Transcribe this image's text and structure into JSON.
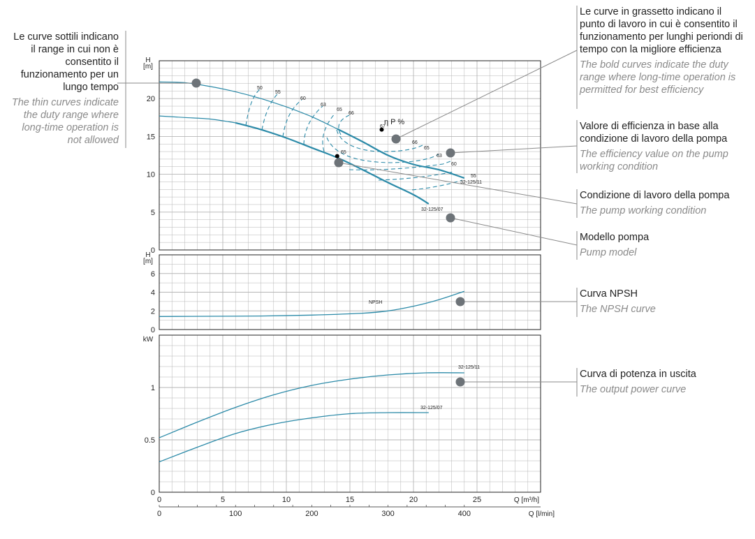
{
  "annotations": {
    "thin_curves": {
      "it": "Le curve sottili indicano il range in cui non è consentito il funzionamento per un lungo tempo",
      "en": "The thin curves indicate the duty range where long-time operation is not allowed"
    },
    "bold_curves": {
      "it": "Le curve in grassetto indicano il punto di lavoro in cui è consentito il funzionamento per lunghi periondi di tempo con la migliore efficienza",
      "en": "The bold curves indicate the duty range where long-time operation is permitted for best efficiency"
    },
    "efficiency": {
      "it": "Valore di efficienza in base alla condizione di lavoro della pompa",
      "en": "The efficiency value on the pump working condition"
    },
    "working_condition": {
      "it": "Condizione di lavoro della pompa",
      "en": "The pump working condition"
    },
    "pump_model": {
      "it": "Modello pompa",
      "en": "Pump model"
    },
    "npsh_curve": {
      "it": "Curva NPSH",
      "en": "The NPSH curve"
    },
    "power_curve": {
      "it": "Curva di potenza in uscita",
      "en": "The output power curve"
    }
  },
  "colors": {
    "curve": "#2b8aa8",
    "marker": "#6d7378",
    "grid": "#b5b5b5",
    "leader": "#8a8a8a",
    "axis": "#222222"
  },
  "chart_data": [
    {
      "type": "line",
      "panel": "head",
      "ylabel": "H [m]",
      "ylim": [
        0,
        25
      ],
      "xlim": [
        0,
        30
      ],
      "yticks": [
        0,
        5,
        10,
        15,
        20
      ],
      "eta_label": "η P %",
      "series": [
        {
          "name": "32-125/11",
          "weight": "thin",
          "x": [
            0,
            2,
            4,
            6,
            8,
            10,
            12,
            14
          ],
          "y": [
            22.2,
            22.1,
            21.6,
            20.9,
            20.0,
            18.9,
            17.6,
            16.0
          ]
        },
        {
          "name": "32-125/11",
          "weight": "bold",
          "x": [
            14,
            16,
            18,
            20,
            22,
            24
          ],
          "y": [
            16.0,
            14.3,
            12.5,
            11.3,
            10.6,
            9.5
          ]
        },
        {
          "name": "32-125/07",
          "weight": "thin",
          "x": [
            0,
            2,
            4,
            6
          ],
          "y": [
            17.7,
            17.5,
            17.3,
            16.8
          ]
        },
        {
          "name": "32-125/07",
          "weight": "bold",
          "x": [
            6,
            8,
            10,
            12,
            14,
            16,
            18,
            20,
            21.2
          ],
          "y": [
            16.8,
            15.9,
            14.8,
            13.5,
            12.2,
            10.6,
            8.9,
            7.3,
            6.1
          ]
        }
      ],
      "efficiency_labels": {
        "upper": [
          "50",
          "55",
          "60",
          "63",
          "65",
          "66",
          "67"
        ],
        "right": [
          "66",
          "65",
          "63",
          "60",
          "55"
        ],
        "lower": [
          "65"
        ]
      },
      "model_labels": [
        "32-125/11",
        "32-125/07"
      ],
      "operating_point": {
        "x": 17.5,
        "y": 15.9
      },
      "lower_point": {
        "x": 14,
        "y": 12.4
      }
    },
    {
      "type": "line",
      "panel": "npsh",
      "ylabel": "H [m]",
      "ylim": [
        0,
        8
      ],
      "yticks": [
        0,
        2,
        4,
        6
      ],
      "series": [
        {
          "name": "NPSH",
          "x": [
            0,
            4,
            8,
            12,
            16,
            18,
            20,
            22,
            24
          ],
          "y": [
            1.4,
            1.42,
            1.45,
            1.55,
            1.75,
            2.0,
            2.5,
            3.2,
            4.1
          ]
        }
      ]
    },
    {
      "type": "line",
      "panel": "power",
      "ylabel": "kW",
      "ylim": [
        0,
        1.5
      ],
      "yticks": [
        0,
        0.5,
        1
      ],
      "ytick_labels": [
        "0",
        "0.5",
        "1"
      ],
      "series": [
        {
          "name": "32-125/11",
          "x": [
            0,
            3,
            6,
            9,
            12,
            15,
            18,
            21,
            24
          ],
          "y": [
            0.52,
            0.67,
            0.81,
            0.93,
            1.02,
            1.08,
            1.12,
            1.14,
            1.14
          ]
        },
        {
          "name": "32-125/07",
          "x": [
            0,
            3,
            6,
            9,
            12,
            15,
            18,
            21.2
          ],
          "y": [
            0.29,
            0.43,
            0.56,
            0.65,
            0.71,
            0.75,
            0.76,
            0.76
          ]
        }
      ]
    }
  ],
  "x_axes": {
    "q_m3h": {
      "label": "Q [m³/h]",
      "ticks": [
        "0",
        "5",
        "10",
        "15",
        "20",
        "25"
      ],
      "values": [
        0,
        5,
        10,
        15,
        20,
        25
      ]
    },
    "q_lmin": {
      "label": "Q [l/min]",
      "ticks": [
        "0",
        "100",
        "200",
        "300",
        "400"
      ],
      "values": [
        0,
        100,
        200,
        300,
        400
      ]
    }
  }
}
